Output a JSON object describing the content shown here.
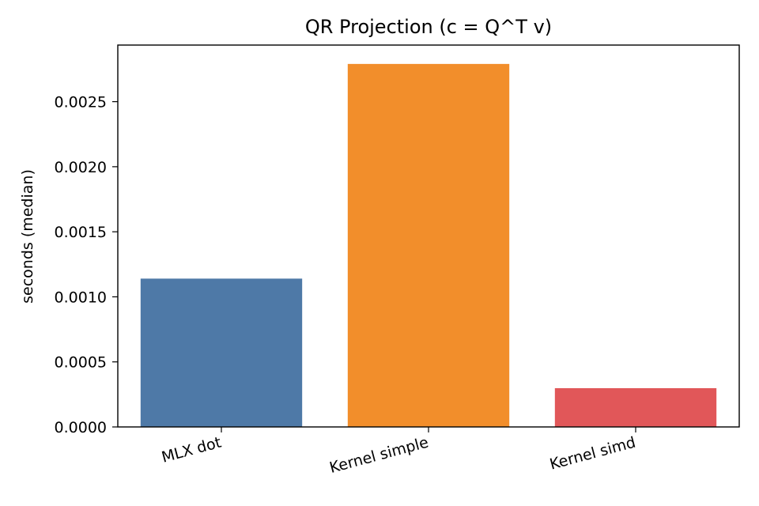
{
  "chart_data": {
    "type": "bar",
    "title": "QR Projection (c = Q^T v)",
    "xlabel": "",
    "ylabel": "seconds (median)",
    "categories": [
      "MLX dot",
      "Kernel simple",
      "Kernel simd"
    ],
    "values": [
      0.00114,
      0.00279,
      0.000298
    ],
    "colors": [
      "#4e79a7",
      "#f28e2b",
      "#e15759"
    ],
    "ylim": [
      0,
      0.002935
    ],
    "yticks": [
      "0.0000",
      "0.0005",
      "0.0010",
      "0.0015",
      "0.0020",
      "0.0025"
    ],
    "ytick_values": [
      0,
      0.0005,
      0.001,
      0.0015,
      0.002,
      0.0025
    ],
    "grid": false
  }
}
